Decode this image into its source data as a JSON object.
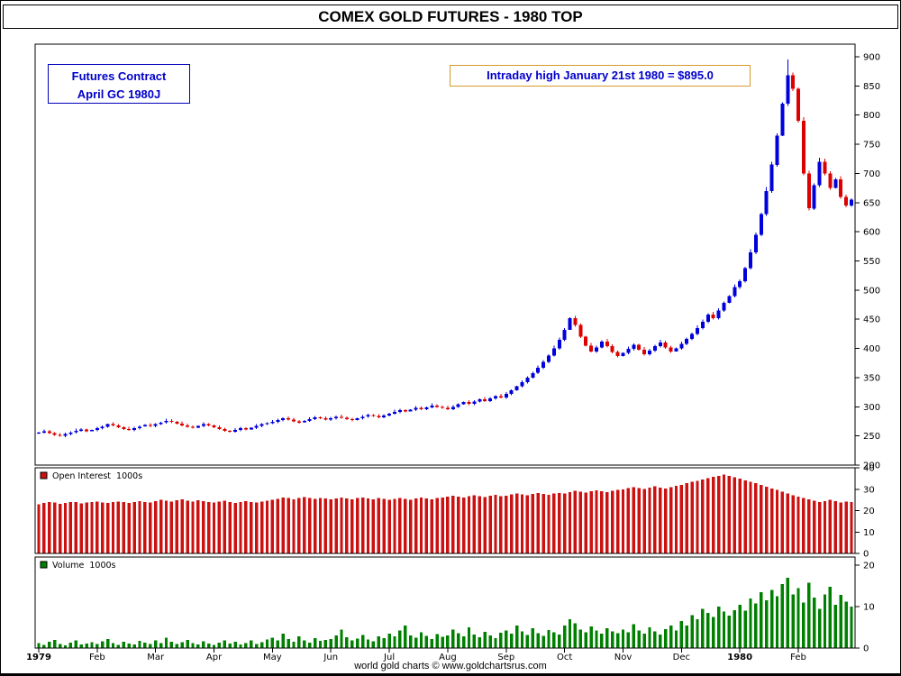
{
  "title_bar": {
    "title": "COMEX GOLD FUTURES - 1980 TOP"
  },
  "overlays": {
    "contract_box": {
      "line1": "Futures Contract",
      "line2": "April GC 1980J"
    },
    "annotation_box": {
      "text": "Intraday high January 21st 1980 = $895.0"
    }
  },
  "footer": {
    "text": "world gold charts © www.goldchartsrus.com"
  },
  "chart_data": {
    "type": "candlestick",
    "title": "COMEX GOLD FUTURES - 1980 TOP",
    "x_axis": {
      "labels": [
        {
          "label": "1979",
          "index": 0,
          "bold": true
        },
        {
          "label": "Feb",
          "index": 11,
          "bold": false
        },
        {
          "label": "Mar",
          "index": 22,
          "bold": false
        },
        {
          "label": "Apr",
          "index": 33,
          "bold": false
        },
        {
          "label": "May",
          "index": 44,
          "bold": false
        },
        {
          "label": "Jun",
          "index": 55,
          "bold": false
        },
        {
          "label": "Jul",
          "index": 66,
          "bold": false
        },
        {
          "label": "Aug",
          "index": 77,
          "bold": false
        },
        {
          "label": "Sep",
          "index": 88,
          "bold": false
        },
        {
          "label": "Oct",
          "index": 99,
          "bold": false
        },
        {
          "label": "Nov",
          "index": 110,
          "bold": false
        },
        {
          "label": "Dec",
          "index": 121,
          "bold": false
        },
        {
          "label": "1980",
          "index": 132,
          "bold": true
        },
        {
          "label": "Feb",
          "index": 143,
          "bold": false
        }
      ]
    },
    "price_panel": {
      "ylim": [
        200,
        900
      ],
      "yticks": [
        200,
        250,
        300,
        350,
        400,
        450,
        500,
        550,
        600,
        650,
        700,
        750,
        800,
        850,
        900
      ],
      "up_color": "#0000dd",
      "down_color": "#dd0000"
    },
    "open_interest_panel": {
      "legend": "Open Interest  1000s",
      "ylim": [
        0,
        40
      ],
      "yticks": [
        0,
        10,
        20,
        30,
        40
      ],
      "bar_color": "#cc1111"
    },
    "volume_panel": {
      "legend": "Volume  1000s",
      "ylim": [
        0,
        22
      ],
      "yticks": [
        0,
        10,
        20
      ],
      "bar_color": "#008000"
    },
    "annotation": {
      "peak_index": 141,
      "intraday_high": 895
    },
    "close": [
      256,
      258,
      255,
      252,
      250,
      253,
      256,
      259,
      261,
      258,
      260,
      263,
      266,
      270,
      268,
      265,
      262,
      260,
      263,
      266,
      269,
      267,
      270,
      273,
      276,
      274,
      271,
      268,
      266,
      264,
      267,
      270,
      268,
      265,
      262,
      259,
      257,
      260,
      263,
      261,
      264,
      267,
      270,
      272,
      274,
      277,
      280,
      278,
      275,
      273,
      276,
      279,
      282,
      280,
      278,
      280,
      283,
      281,
      279,
      277,
      280,
      283,
      286,
      284,
      282,
      285,
      288,
      291,
      294,
      292,
      295,
      298,
      296,
      299,
      302,
      300,
      298,
      296,
      300,
      304,
      308,
      305,
      309,
      313,
      310,
      314,
      318,
      316,
      322,
      328,
      335,
      342,
      350,
      358,
      367,
      377,
      388,
      400,
      415,
      432,
      452,
      440,
      420,
      405,
      395,
      402,
      412,
      404,
      394,
      387,
      392,
      399,
      406,
      398,
      390,
      396,
      404,
      410,
      402,
      395,
      400,
      408,
      416,
      425,
      435,
      446,
      458,
      452,
      465,
      478,
      490,
      505,
      515,
      538,
      565,
      595,
      630,
      670,
      715,
      765,
      820,
      868,
      845,
      790,
      700,
      640,
      680,
      720,
      700,
      675,
      690,
      660,
      645,
      655
    ],
    "open_interest": [
      23.0,
      23.5,
      24.0,
      23.8,
      23.2,
      23.6,
      24.1,
      23.9,
      23.4,
      23.7,
      24.0,
      24.2,
      23.8,
      23.5,
      24.0,
      24.3,
      23.9,
      23.6,
      24.1,
      24.4,
      24.0,
      23.7,
      24.5,
      25.0,
      24.6,
      24.2,
      24.8,
      25.2,
      24.7,
      24.3,
      24.9,
      24.5,
      24.1,
      23.8,
      24.2,
      24.6,
      24.0,
      23.6,
      24.1,
      24.5,
      24.0,
      23.7,
      24.2,
      24.6,
      25.0,
      25.5,
      26.2,
      25.8,
      25.3,
      25.9,
      26.4,
      25.9,
      25.5,
      26.0,
      25.6,
      25.2,
      25.7,
      26.1,
      25.6,
      25.2,
      25.8,
      26.2,
      25.7,
      25.3,
      25.9,
      25.4,
      25.0,
      25.5,
      26.0,
      25.5,
      25.1,
      25.7,
      26.1,
      25.6,
      25.2,
      25.8,
      26.2,
      26.5,
      27.0,
      26.6,
      26.2,
      26.8,
      27.2,
      26.7,
      26.3,
      26.9,
      27.3,
      26.8,
      27.0,
      27.5,
      28.0,
      27.6,
      27.2,
      27.8,
      28.2,
      27.7,
      27.3,
      27.9,
      28.3,
      28.0,
      28.6,
      29.2,
      28.8,
      28.4,
      29.0,
      29.5,
      29.0,
      28.6,
      29.2,
      29.6,
      30.0,
      30.5,
      31.0,
      30.6,
      30.2,
      30.8,
      31.3,
      30.8,
      30.4,
      31.0,
      31.5,
      32.0,
      32.8,
      33.5,
      34.0,
      34.6,
      35.2,
      35.8,
      36.3,
      36.8,
      36.2,
      35.6,
      35.0,
      34.2,
      33.5,
      32.8,
      32.0,
      31.2,
      30.4,
      29.6,
      28.8,
      28.0,
      27.2,
      26.5,
      25.8,
      25.2,
      24.6,
      24.0,
      24.5,
      25.0,
      24.4,
      23.8,
      24.2,
      23.9
    ],
    "volume": [
      1.2,
      0.8,
      1.5,
      2.0,
      1.0,
      0.7,
      1.3,
      1.8,
      0.9,
      1.1,
      1.4,
      1.0,
      1.6,
      2.2,
      1.2,
      0.8,
      1.5,
      1.1,
      0.9,
      1.7,
      1.3,
      1.0,
      1.8,
      1.2,
      2.5,
      1.5,
      1.0,
      1.4,
      2.0,
      1.2,
      0.9,
      1.6,
      1.1,
      0.8,
      1.3,
      1.9,
      1.1,
      1.5,
      0.9,
      1.2,
      1.8,
      1.0,
      1.4,
      2.1,
      2.5,
      1.8,
      3.5,
      2.2,
      1.5,
      2.8,
      1.9,
      1.3,
      2.4,
      1.7,
      2.0,
      2.2,
      3.0,
      4.5,
      2.6,
      1.9,
      2.3,
      3.2,
      2.1,
      1.6,
      2.8,
      2.4,
      3.5,
      2.8,
      4.2,
      5.5,
      3.1,
      2.5,
      3.8,
      2.9,
      2.2,
      3.4,
      2.7,
      3.0,
      4.5,
      3.6,
      2.8,
      5.0,
      3.3,
      2.6,
      3.9,
      3.1,
      2.4,
      3.7,
      4.2,
      3.5,
      5.5,
      4.0,
      3.2,
      4.8,
      3.6,
      2.9,
      4.4,
      3.8,
      3.3,
      5.5,
      7.0,
      6.0,
      4.5,
      3.8,
      5.2,
      4.2,
      3.5,
      4.8,
      4.0,
      3.6,
      4.5,
      3.8,
      5.8,
      4.2,
      3.5,
      5.0,
      4.0,
      3.3,
      4.6,
      5.4,
      4.3,
      6.5,
      5.5,
      8.0,
      7.0,
      9.5,
      8.5,
      7.5,
      10.0,
      8.8,
      7.8,
      9.2,
      10.5,
      9.0,
      12.0,
      10.8,
      13.5,
      11.5,
      14.0,
      12.5,
      15.5,
      17.0,
      13.0,
      14.5,
      11.0,
      15.8,
      12.2,
      9.5,
      13.0,
      14.8,
      10.5,
      12.8,
      11.2,
      10.0
    ]
  }
}
